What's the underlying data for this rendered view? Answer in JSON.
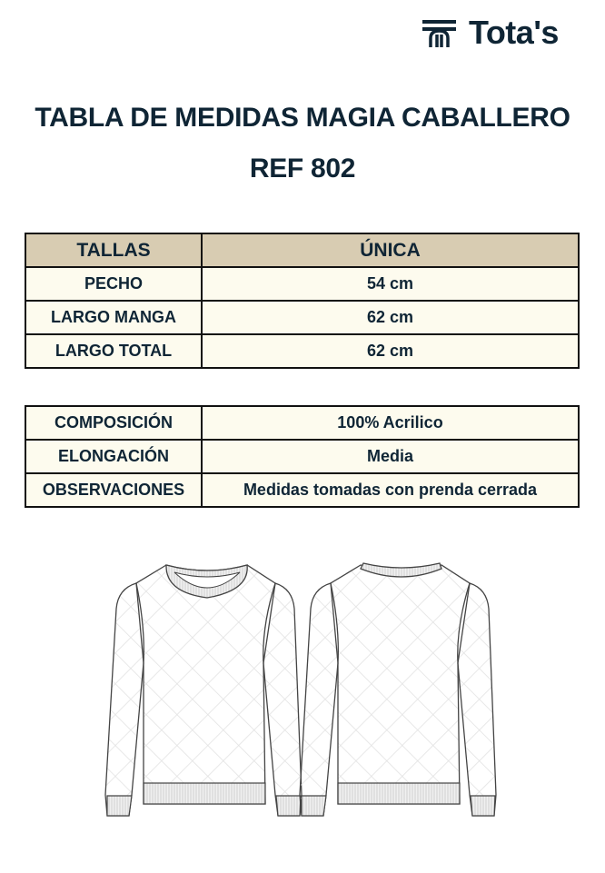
{
  "brand": {
    "name": "Tota's",
    "logo_icon": "tota-t-logo-icon"
  },
  "title": {
    "line1": "TABLA DE MEDIDAS MAGIA CABALLERO",
    "line2": "REF 802"
  },
  "colors": {
    "text": "#0f2535",
    "header_bg": "#d8ccb2",
    "cell_bg": "#fdfbee"
  },
  "size_table": {
    "header": [
      "TALLAS",
      "ÚNICA"
    ],
    "rows": [
      [
        "PECHO",
        "54 cm"
      ],
      [
        "LARGO MANGA",
        "62 cm"
      ],
      [
        "LARGO TOTAL",
        "62 cm"
      ]
    ]
  },
  "info_table": {
    "rows": [
      [
        "COMPOSICIÓN",
        "100% Acrilico"
      ],
      [
        "ELONGACIÓN",
        "Media"
      ],
      [
        "OBSERVACIONES",
        "Medidas tomadas con prenda cerrada"
      ]
    ]
  },
  "illustrations": [
    "sweater-front",
    "sweater-back"
  ]
}
